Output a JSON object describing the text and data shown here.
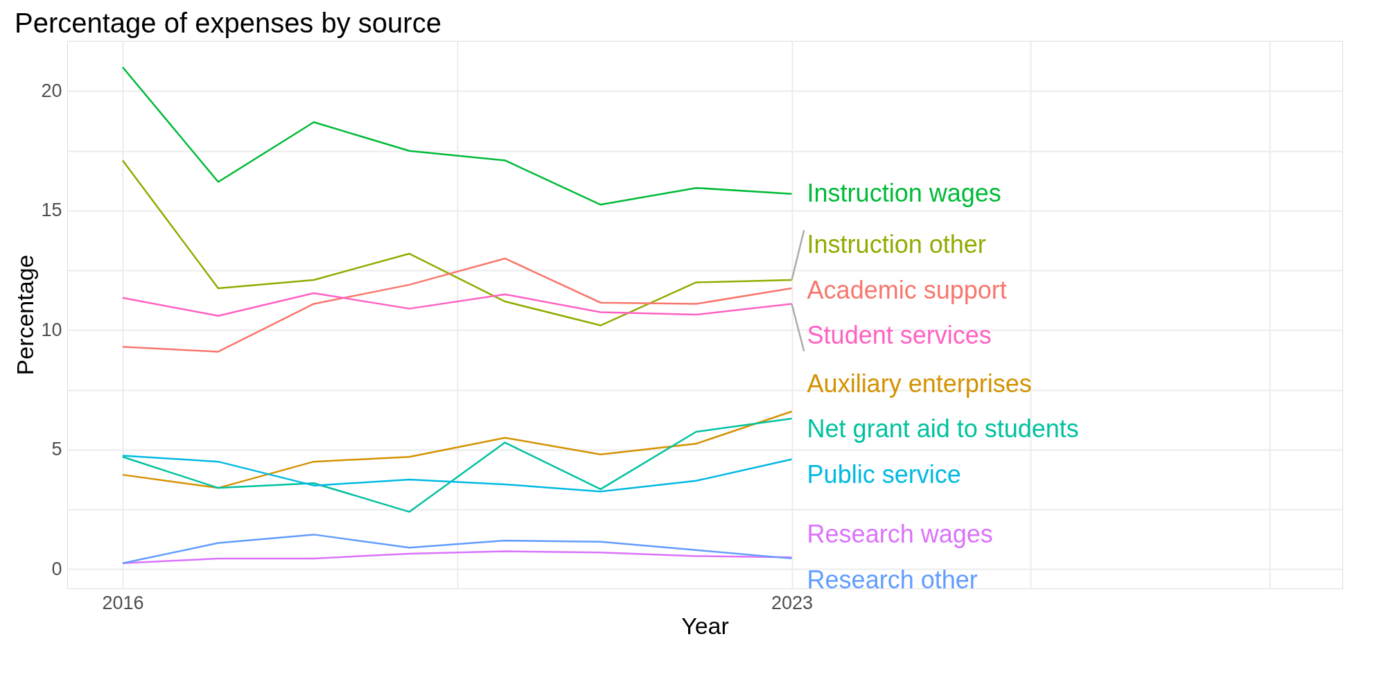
{
  "chart_data": {
    "type": "line",
    "title": "Percentage of expenses by source",
    "xlabel": "Year",
    "ylabel": "Percentage",
    "x": [
      2016,
      2017,
      2018,
      2019,
      2020,
      2021,
      2022,
      2023
    ],
    "series": [
      {
        "name": "Instruction wages",
        "color": "#00ba38",
        "values": [
          21.0,
          16.2,
          18.7,
          17.5,
          17.1,
          15.25,
          15.95,
          15.7
        ]
      },
      {
        "name": "Instruction other",
        "color": "#93aa00",
        "values": [
          17.1,
          11.75,
          12.1,
          13.2,
          11.2,
          10.2,
          12.0,
          12.1
        ]
      },
      {
        "name": "Academic support",
        "color": "#f8766d",
        "values": [
          9.3,
          9.1,
          11.1,
          11.9,
          13.0,
          11.15,
          11.1,
          11.75
        ]
      },
      {
        "name": "Student services",
        "color": "#ff61c3",
        "values": [
          11.35,
          10.6,
          11.55,
          10.9,
          11.5,
          10.75,
          10.65,
          11.1
        ]
      },
      {
        "name": "Auxiliary enterprises",
        "color": "#d39200",
        "values": [
          3.95,
          3.4,
          4.5,
          4.7,
          5.5,
          4.8,
          5.25,
          6.6
        ]
      },
      {
        "name": "Net grant aid to students",
        "color": "#00c19f",
        "values": [
          4.7,
          3.4,
          3.6,
          2.4,
          5.3,
          3.35,
          5.75,
          6.3
        ]
      },
      {
        "name": "Public service",
        "color": "#00b9e3",
        "values": [
          4.75,
          4.5,
          3.5,
          3.75,
          3.55,
          3.25,
          3.7,
          4.6
        ]
      },
      {
        "name": "Research wages",
        "color": "#db72fb",
        "values": [
          0.25,
          0.45,
          0.45,
          0.65,
          0.75,
          0.7,
          0.55,
          0.5
        ]
      },
      {
        "name": "Research other",
        "color": "#619cff",
        "values": [
          0.25,
          1.1,
          1.45,
          0.9,
          1.2,
          1.15,
          0.8,
          0.45
        ]
      }
    ],
    "xlim": [
      2015.42,
      2028.76
    ],
    "ylim": [
      -0.8,
      22.1
    ],
    "xticks": [
      2016,
      {
        "value": 2019.5,
        "label": null
      },
      2023,
      {
        "value": 2025.5,
        "label": null
      },
      {
        "value": 2028,
        "label": null
      }
    ],
    "yticks": [
      0,
      {
        "value": 2.5,
        "label": null
      },
      5,
      {
        "value": 7.5,
        "label": null
      },
      10,
      {
        "value": 12.5,
        "label": null
      },
      15,
      {
        "value": 17.5,
        "label": null
      },
      20
    ],
    "grid": true,
    "legend": false
  }
}
